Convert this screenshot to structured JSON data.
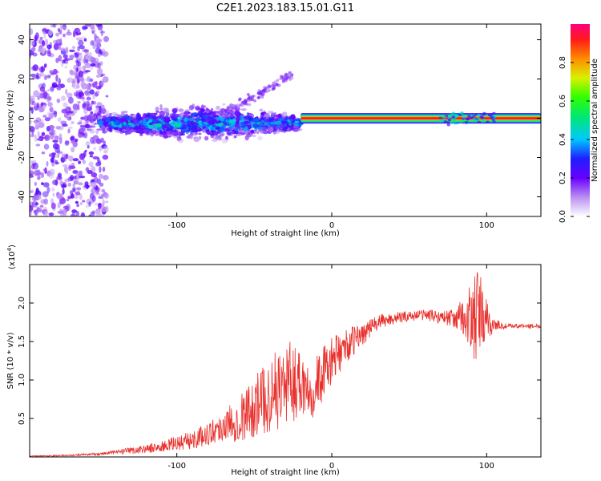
{
  "figure_title": "C2E1.2023.183.15.01.G11",
  "chart_data": [
    {
      "type": "heatmap",
      "title": "C2E1.2023.183.15.01.G11",
      "xlabel": "Height of straight line (km)",
      "ylabel": "Frequency (Hz)",
      "xlim": [
        -195,
        135
      ],
      "ylim": [
        -50,
        48
      ],
      "x_ticks": [
        -100,
        0,
        100
      ],
      "y_ticks": [
        -40,
        -20,
        0,
        20,
        40
      ],
      "colorbar": {
        "label": "Normalized spectral amplitude",
        "range": [
          0,
          1
        ],
        "ticks": [
          0.0,
          0.2,
          0.4,
          0.6,
          0.8
        ]
      },
      "ridges": [
        {
          "x_start": -150,
          "x_end": -20,
          "freq": -2.5,
          "amplitude": 0.35,
          "note_as_seen": "scattered band"
        },
        {
          "x_start": -20,
          "x_end": 135,
          "freq": 0,
          "amplitude": 0.95,
          "note_as_seen": "strong narrow line"
        }
      ],
      "noise_region": {
        "x_start": -195,
        "x_end": -145,
        "freq_range": [
          -50,
          48
        ],
        "amplitude": 0.2
      },
      "grid": false
    },
    {
      "type": "line",
      "xlabel": "Height of straight line (km)",
      "ylabel": "SNR (10 * v/v)",
      "y_scale_label": "(x10",
      "y_scale_exp": "4",
      "y_scale_close": ")",
      "xlim": [
        -195,
        135
      ],
      "ylim": [
        0,
        2.5
      ],
      "x_ticks": [
        -100,
        0,
        100
      ],
      "y_ticks": [
        0.5,
        1.0,
        1.5,
        2.0
      ],
      "color": "#e8302c",
      "series": [
        {
          "x": [
            -195,
            -170,
            -150,
            -130,
            -110,
            -100,
            -90,
            -80,
            -70,
            -60,
            -50,
            -40,
            -30,
            -20,
            -15,
            -10,
            -5,
            0,
            10,
            20,
            30,
            40,
            50,
            60,
            70,
            80,
            85,
            90,
            95,
            100,
            105,
            110,
            120,
            135
          ],
          "values": [
            0.01,
            0.02,
            0.04,
            0.08,
            0.13,
            0.18,
            0.22,
            0.3,
            0.4,
            0.5,
            0.65,
            0.8,
            0.95,
            1.0,
            0.9,
            0.95,
            1.1,
            1.25,
            1.45,
            1.6,
            1.75,
            1.8,
            1.83,
            1.85,
            1.82,
            1.8,
            1.8,
            1.75,
            1.85,
            1.75,
            1.72,
            1.7,
            1.7,
            1.7
          ],
          "spread": [
            0.005,
            0.01,
            0.02,
            0.04,
            0.07,
            0.1,
            0.12,
            0.15,
            0.2,
            0.3,
            0.4,
            0.5,
            0.55,
            0.5,
            0.45,
            0.4,
            0.35,
            0.3,
            0.22,
            0.15,
            0.1,
            0.08,
            0.07,
            0.07,
            0.09,
            0.12,
            0.3,
            0.55,
            0.6,
            0.3,
            0.1,
            0.04,
            0.03,
            0.03
          ]
        }
      ],
      "grid": false
    }
  ]
}
